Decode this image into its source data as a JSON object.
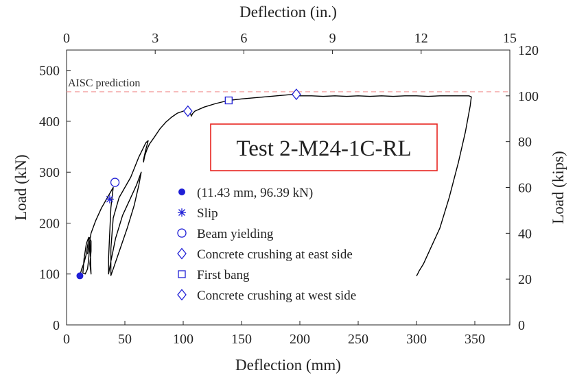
{
  "chart_data": {
    "type": "line",
    "title": "",
    "xlabel": "Deflection (mm)",
    "ylabel": "Load (kN)",
    "x2label": "Deflection (in.)",
    "y2label": "Load (kips)",
    "xlim": [
      0,
      380
    ],
    "ylim": [
      0,
      540
    ],
    "x2lim": [
      0,
      15
    ],
    "y2lim": [
      0,
      120
    ],
    "xticks": [
      0,
      50,
      100,
      150,
      200,
      250,
      300,
      350
    ],
    "yticks": [
      0,
      100,
      200,
      300,
      400,
      500
    ],
    "x2ticks": [
      0,
      3,
      6,
      9,
      12,
      15
    ],
    "y2ticks": [
      0,
      20,
      40,
      60,
      80,
      100,
      120
    ],
    "grid": false,
    "reference_line": {
      "label": "AISC prediction",
      "y": 458,
      "color": "#f4a0a0"
    },
    "test_label": "Test 2-M24-1C-RL",
    "curve_color": "#000000",
    "marker_color": "#1f1fd6",
    "legend_position": "center",
    "series": [
      {
        "name": "Load-deflection curve",
        "x": [
          11.4,
          13,
          15,
          17,
          18,
          19,
          20,
          20,
          19,
          18,
          16,
          14,
          15,
          17,
          19,
          21,
          21,
          20,
          21,
          20,
          19,
          18,
          21,
          25,
          30,
          35,
          38,
          40,
          38,
          37,
          36,
          36,
          38,
          42,
          48,
          55,
          60,
          64,
          62,
          58,
          52,
          46,
          40,
          38,
          38,
          40,
          45,
          50,
          55,
          62,
          68,
          70,
          68,
          66,
          66,
          67,
          69,
          71,
          75,
          80,
          85,
          90,
          95,
          100,
          105,
          107,
          108,
          110,
          118,
          128,
          139,
          150,
          160,
          170,
          180,
          190,
          197,
          200,
          210,
          220,
          230,
          240,
          250,
          260,
          270,
          280,
          290,
          300,
          310,
          320,
          330,
          340,
          345,
          347,
          346,
          342,
          336,
          328,
          320,
          312,
          306,
          302,
          301,
          300
        ],
        "y": [
          96.4,
          110,
          122,
          140,
          155,
          168,
          172,
          160,
          130,
          110,
          100,
          102,
          130,
          160,
          172,
          165,
          145,
          120,
          100,
          165,
          155,
          140,
          180,
          205,
          230,
          250,
          262,
          270,
          230,
          180,
          130,
          100,
          125,
          170,
          215,
          250,
          275,
          300,
          275,
          235,
          190,
          150,
          110,
          97,
          150,
          210,
          250,
          270,
          290,
          330,
          358,
          362,
          345,
          325,
          320,
          332,
          345,
          355,
          368,
          385,
          398,
          408,
          416,
          420,
          424,
          410,
          415,
          420,
          428,
          435,
          441,
          444,
          446,
          448,
          450,
          452,
          453,
          450,
          450,
          449,
          450,
          449,
          450,
          449,
          450,
          449,
          450,
          450,
          449,
          450,
          450,
          450,
          450,
          448,
          430,
          380,
          320,
          250,
          190,
          150,
          120,
          105,
          100,
          96
        ]
      }
    ],
    "markers": [
      {
        "name": "(11.43 mm, 96.39 kN)",
        "symbol": "filled-circle",
        "x": 11.43,
        "y": 96.39
      },
      {
        "name": "Slip",
        "symbol": "asterisk",
        "x": 37,
        "y": 247
      },
      {
        "name": "Beam yielding",
        "symbol": "circle",
        "x": 41.5,
        "y": 280
      },
      {
        "name": "Concrete crushing at east side",
        "symbol": "diamond",
        "x": 104,
        "y": 420
      },
      {
        "name": "First bang",
        "symbol": "square",
        "x": 139,
        "y": 441
      },
      {
        "name": "Concrete crushing at west side",
        "symbol": "diamond",
        "x": 197,
        "y": 453
      }
    ]
  }
}
